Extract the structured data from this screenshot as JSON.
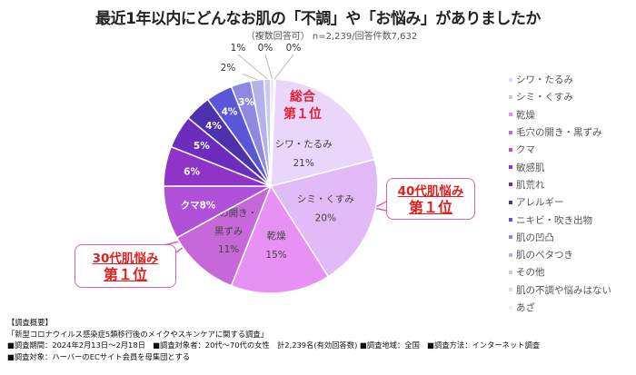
{
  "chart_data": {
    "type": "pie",
    "title": "最近1年以内にどんなお肌の「不調」や「お悩み」がありましたか",
    "subtitle": "（複数回答可） n=2,239/回答件数7,632",
    "categories": [
      "シワ・たるみ",
      "シミ・くすみ",
      "乾燥",
      "毛穴の開き・黒ずみ",
      "クマ",
      "敏感肌",
      "肌荒れ",
      "アレルギー",
      "ニキビ・吹き出物",
      "肌の凹凸",
      "肌のベタつき",
      "その他",
      "肌の不調や悩みはない",
      "あざ"
    ],
    "values": [
      21,
      20,
      15,
      11,
      8,
      6,
      5,
      4,
      4,
      3,
      2,
      1,
      0,
      0
    ],
    "value_labels": [
      "21%",
      "20%",
      "15%",
      "11%",
      "8%",
      "6%",
      "5%",
      "4%",
      "4%",
      "3%",
      "2%",
      "1%",
      "0%",
      "0%"
    ],
    "slice_names": [
      "シワ・たるみ",
      "シミ・くすみ",
      "乾燥",
      "毛穴の開き・\n黒ずみ",
      "クマ",
      "",
      "",
      "",
      "",
      "",
      "",
      "",
      "",
      ""
    ],
    "colors": [
      "#ead6fb",
      "#e2baf8",
      "#e691f3",
      "#c768d8",
      "#b04fd8",
      "#8e34c6",
      "#6c2dbe",
      "#4d32ae",
      "#5b56d8",
      "#8d88e2",
      "#b3b1ee",
      "#c9c9f2",
      "#d9d9f6",
      "#ececfb"
    ],
    "legend_placement": "right",
    "unit": "%"
  },
  "annotations": {
    "overall_top": [
      "総合",
      "第１位"
    ],
    "forties": [
      "40代肌悩み",
      "第１位"
    ],
    "thirties": [
      "30代肌悩み",
      "第１位"
    ]
  },
  "notes": [
    "【調査概要】",
    "「新型コロナウイルス感染症5類移行後のメイクやスキンケアに関する調査」",
    "■調査期間：2024年2月13日～2月18日　■調査対象者：20代～70代の女性　計2,239名(有効回答数) ■調査地域：全国　■調査方法：インターネット調査",
    "■調査対象：ハーバーのECサイト会員を母集団とする"
  ]
}
